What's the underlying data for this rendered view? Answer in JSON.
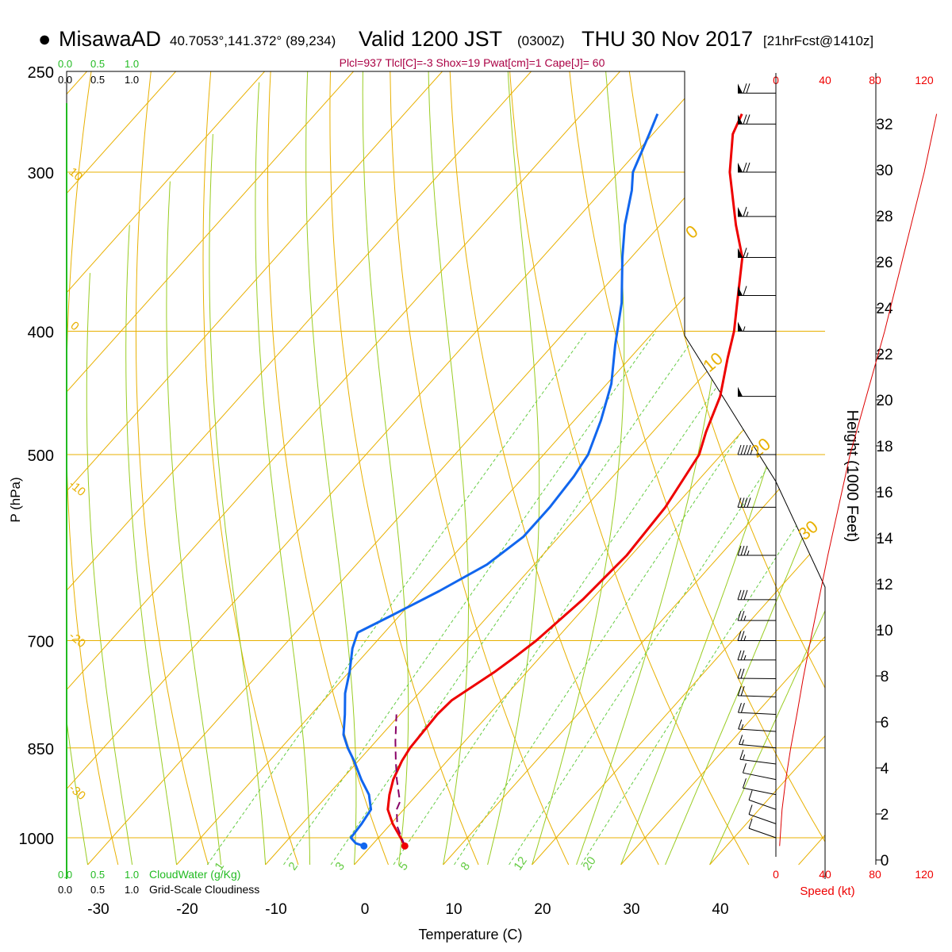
{
  "header": {
    "station": "MisawaAD",
    "coords": "40.7053°,141.372° (89,234)",
    "valid": "Valid 1200 JST",
    "utc": "(0300Z)",
    "date": "THU 30 Nov 2017",
    "fcst": "[21hrFcst@1410z]",
    "indices": "Plcl=937 Tlcl[C]=-3 Shox=19 Pwat[cm]=1 Cape[J]= 60"
  },
  "colors": {
    "isobar": "#e8b000",
    "mixing_ratio": "#66cc44",
    "moist_adiabat": "#99cc22",
    "dry_adiabat": "#e8b000",
    "temperature": "#ee0000",
    "dewpoint": "#1166ee",
    "parcel": "#880066",
    "cloud": "#22bb22",
    "indices": "#aa0044"
  },
  "chart_data": {
    "type": "line",
    "title": "MisawaAD",
    "xlabel": "Temperature (C)",
    "ylabel": "P (hPa)",
    "xlim": [
      -34,
      46
    ],
    "ylim_pressure": [
      1050,
      250
    ],
    "x_ticks": [
      "-30",
      "-20",
      "-10",
      "0",
      "10",
      "20",
      "30",
      "40"
    ],
    "pressure_ticks": [
      "250",
      "300",
      "400",
      "500",
      "700",
      "850",
      "1000"
    ],
    "series": [
      {
        "kind": "temperature",
        "points": [
          [
            1015,
            3.8
          ],
          [
            1000,
            2.5
          ],
          [
            975,
            0.2
          ],
          [
            950,
            -1.8
          ],
          [
            925,
            -3.1
          ],
          [
            900,
            -4.2
          ],
          [
            870,
            -5.1
          ],
          [
            850,
            -5.5
          ],
          [
            800,
            -5.8
          ],
          [
            780,
            -5.6
          ],
          [
            760,
            -4.6
          ],
          [
            740,
            -3.6
          ],
          [
            720,
            -2.8
          ],
          [
            700,
            -2.1
          ],
          [
            650,
            -1.0
          ],
          [
            600,
            -0.5
          ],
          [
            550,
            -1.0
          ],
          [
            500,
            -2.5
          ],
          [
            480,
            -4.0
          ],
          [
            450,
            -6.0
          ],
          [
            420,
            -9.0
          ],
          [
            400,
            -11.0
          ],
          [
            380,
            -13.5
          ],
          [
            350,
            -17.5
          ],
          [
            330,
            -21.5
          ],
          [
            300,
            -27.5
          ],
          [
            280,
            -31.0
          ],
          [
            270,
            -32.0
          ]
        ]
      },
      {
        "kind": "dewpoint",
        "points": [
          [
            1015,
            -0.8
          ],
          [
            1010,
            -2.0
          ],
          [
            1000,
            -3.1
          ],
          [
            975,
            -3.3
          ],
          [
            950,
            -3.7
          ],
          [
            925,
            -5.4
          ],
          [
            900,
            -7.8
          ],
          [
            870,
            -10.5
          ],
          [
            850,
            -12.5
          ],
          [
            830,
            -14.3
          ],
          [
            800,
            -16.2
          ],
          [
            770,
            -18.3
          ],
          [
            740,
            -20.0
          ],
          [
            710,
            -22.0
          ],
          [
            690,
            -23.0
          ],
          [
            670,
            -21.0
          ],
          [
            640,
            -18.0
          ],
          [
            610,
            -15.3
          ],
          [
            580,
            -14.0
          ],
          [
            550,
            -14.0
          ],
          [
            520,
            -14.4
          ],
          [
            500,
            -15.0
          ],
          [
            470,
            -17.0
          ],
          [
            440,
            -19.5
          ],
          [
            410,
            -23.0
          ],
          [
            380,
            -26.5
          ],
          [
            350,
            -31.0
          ],
          [
            330,
            -34.0
          ],
          [
            310,
            -36.7
          ],
          [
            300,
            -38.4
          ],
          [
            280,
            -40.4
          ],
          [
            270,
            -41.5
          ]
        ]
      },
      {
        "kind": "parcel",
        "points": [
          [
            1015,
            3.8
          ],
          [
            980,
            1.0
          ],
          [
            950,
            -0.8
          ],
          [
            937,
            -1.2
          ],
          [
            900,
            -3.8
          ],
          [
            870,
            -5.8
          ],
          [
            840,
            -7.8
          ],
          [
            800,
            -10.4
          ]
        ]
      }
    ],
    "surface_markers": {
      "temperature": 3.8,
      "dewpoint": -0.8,
      "pressure": 1015
    },
    "mixing_ratio_labels": [
      "1",
      "2",
      "3",
      "5",
      "8",
      "12",
      "20"
    ],
    "dry_adiabat_labels": [
      "10",
      "0",
      "-10",
      "-20",
      "-30"
    ],
    "moist_adiabat_labels": [
      "0",
      "10",
      "20",
      "30"
    ],
    "right_axis": {
      "label": "Height (1000 Feet)",
      "ticks": [
        "0",
        "2",
        "4",
        "6",
        "8",
        "10",
        "12",
        "14",
        "16",
        "18",
        "20",
        "22",
        "24",
        "26",
        "28",
        "30",
        "32"
      ]
    },
    "wind_speed_axis": {
      "label": "Speed (kt)",
      "ticks": [
        "0",
        "40",
        "80",
        "120"
      ],
      "profile_kt": [
        [
          1015,
          3
        ],
        [
          950,
          5
        ],
        [
          900,
          8
        ],
        [
          850,
          12
        ],
        [
          800,
          17
        ],
        [
          750,
          22
        ],
        [
          700,
          28
        ],
        [
          600,
          42
        ],
        [
          500,
          60
        ],
        [
          400,
          88
        ],
        [
          300,
          120
        ],
        [
          270,
          130
        ]
      ]
    },
    "winds_kt": [
      [
        1000,
        10,
        225
      ],
      [
        975,
        10,
        225
      ],
      [
        950,
        10,
        225
      ],
      [
        925,
        10,
        240
      ],
      [
        900,
        10,
        240
      ],
      [
        875,
        15,
        250
      ],
      [
        850,
        15,
        255
      ],
      [
        825,
        15,
        260
      ],
      [
        800,
        20,
        262
      ],
      [
        775,
        20,
        265
      ],
      [
        750,
        20,
        268
      ],
      [
        725,
        25,
        270
      ],
      [
        700,
        25,
        270
      ],
      [
        675,
        25,
        270
      ],
      [
        650,
        30,
        270
      ],
      [
        600,
        35,
        270
      ],
      [
        550,
        40,
        270
      ],
      [
        500,
        45,
        270
      ],
      [
        450,
        50,
        270
      ],
      [
        400,
        55,
        270
      ],
      [
        375,
        60,
        270
      ],
      [
        350,
        65,
        270
      ],
      [
        325,
        65,
        270
      ],
      [
        300,
        70,
        270
      ],
      [
        275,
        70,
        270
      ],
      [
        260,
        70,
        270
      ]
    ],
    "cloud_scale": {
      "top_green": [
        "0.0",
        "0.5",
        "1.0"
      ],
      "top_black": [
        "0.0",
        "0.5",
        "1.0"
      ],
      "bottom_green": [
        "0.0",
        "0.5",
        "1.0"
      ],
      "bottom_green_label": "CloudWater (g/Kg)",
      "bottom_black": [
        "0.0",
        "0.5",
        "1.0"
      ],
      "bottom_black_label": "Grid-Scale Cloudiness"
    }
  }
}
